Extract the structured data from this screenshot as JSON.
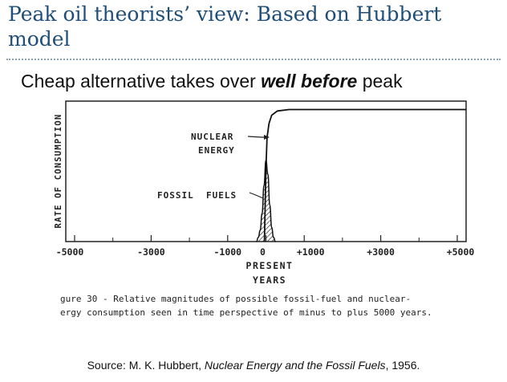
{
  "slide": {
    "title": "Peak oil theorists’ view: Based on Hubbert model",
    "subtitle_pre": "Cheap alternative takes over ",
    "subtitle_emph": "well before",
    "subtitle_post": " peak",
    "source_pre": "Source: M. K. Hubbert, ",
    "source_work": "Nuclear Energy and the Fossil Fuels",
    "source_post": ", 1956."
  },
  "chart_data": {
    "type": "area",
    "ylabel": "RATE OF CONSUMPTION",
    "xlabel_line1": "PRESENT",
    "xlabel_line2": "YEARS",
    "xlim": [
      -5000,
      5000
    ],
    "ylim": [
      0,
      1
    ],
    "x_ticks": [
      -5000,
      -3000,
      -1000,
      0,
      1000,
      3000,
      5000
    ],
    "x_tick_labels": [
      "-5000",
      "-3000",
      "-1000",
      "0",
      "+1000",
      "+3000",
      "+5000"
    ],
    "grid": false,
    "series": [
      {
        "name": "NUCLEAR ENERGY",
        "x": [
          -5000,
          -40,
          0,
          30,
          80,
          150,
          300,
          600,
          1000,
          2000,
          5000
        ],
        "y": [
          0,
          0,
          0.52,
          0.74,
          0.84,
          0.9,
          0.93,
          0.94,
          0.94,
          0.94,
          0.94
        ]
      },
      {
        "name": "FOSSIL FUELS",
        "x": [
          -5000,
          -250,
          -200,
          -150,
          -100,
          -50,
          0,
          50,
          100,
          150,
          200,
          250,
          5000
        ],
        "y": [
          0,
          0,
          0.03,
          0.08,
          0.2,
          0.4,
          0.58,
          0.48,
          0.26,
          0.1,
          0.03,
          0,
          0
        ]
      }
    ],
    "annotations": [
      {
        "line1": "NUCLEAR",
        "line2": "ENERGY"
      },
      {
        "line1": "FOSSIL  FUELS"
      }
    ],
    "caption_line1": "gure 30 - Relative magnitudes of possible fossil-fuel and nuclear-",
    "caption_line2": "ergy consumption seen in time perspective of minus to plus 5000 years."
  }
}
